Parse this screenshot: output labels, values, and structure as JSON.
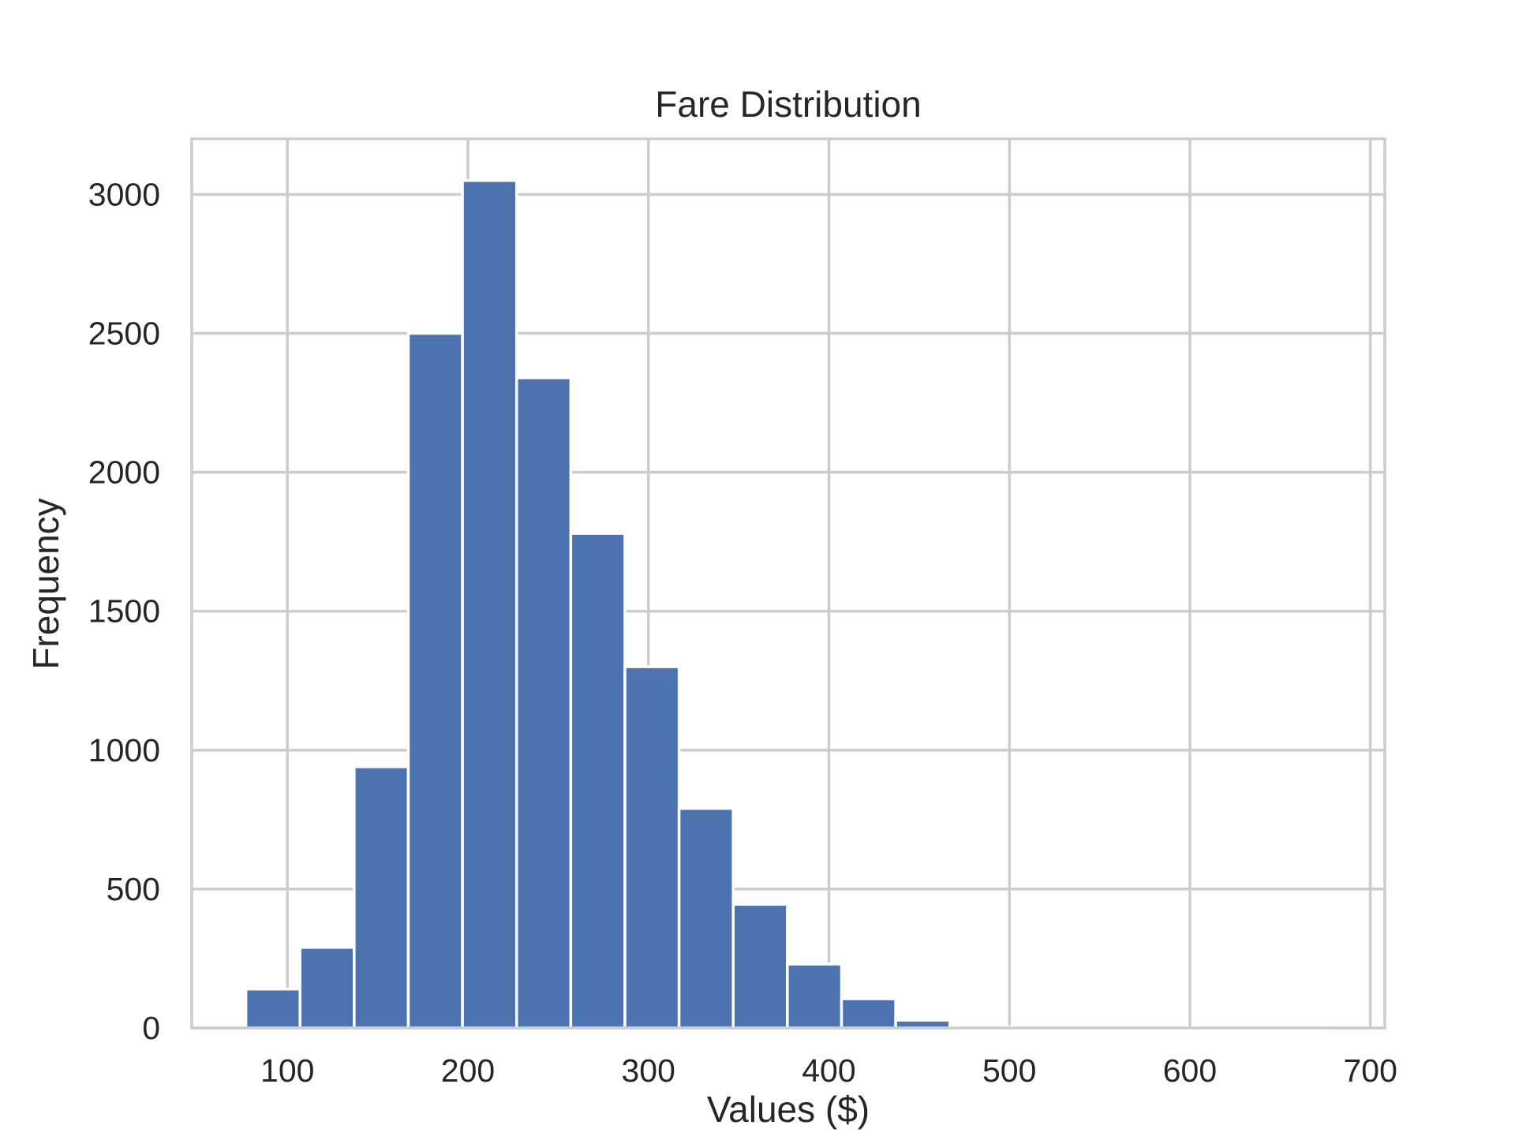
{
  "chart_data": {
    "type": "bar",
    "title": "Fare Distribution",
    "xlabel": "Values ($)",
    "ylabel": "Frequency",
    "xlim": [
      47,
      708
    ],
    "ylim": [
      0,
      3200
    ],
    "xticks": [
      100,
      200,
      300,
      400,
      500,
      600,
      700
    ],
    "yticks": [
      0,
      500,
      1000,
      1500,
      2000,
      2500,
      3000
    ],
    "grid": true,
    "bar_color": "#4c72b0",
    "bins": [
      {
        "start": 77,
        "end": 107,
        "count": 140
      },
      {
        "start": 107,
        "end": 137,
        "count": 290
      },
      {
        "start": 137,
        "end": 167,
        "count": 940
      },
      {
        "start": 167,
        "end": 197,
        "count": 2500
      },
      {
        "start": 197,
        "end": 227,
        "count": 3050
      },
      {
        "start": 227,
        "end": 257,
        "count": 2340
      },
      {
        "start": 257,
        "end": 287,
        "count": 1780
      },
      {
        "start": 287,
        "end": 317,
        "count": 1300
      },
      {
        "start": 317,
        "end": 347,
        "count": 790
      },
      {
        "start": 347,
        "end": 377,
        "count": 445
      },
      {
        "start": 377,
        "end": 407,
        "count": 230
      },
      {
        "start": 407,
        "end": 437,
        "count": 105
      },
      {
        "start": 437,
        "end": 467,
        "count": 28
      },
      {
        "start": 467,
        "end": 497,
        "count": 6
      },
      {
        "start": 497,
        "end": 527,
        "count": 3
      },
      {
        "start": 527,
        "end": 557,
        "count": 2
      },
      {
        "start": 557,
        "end": 587,
        "count": 1
      },
      {
        "start": 587,
        "end": 617,
        "count": 1
      },
      {
        "start": 617,
        "end": 647,
        "count": 1
      },
      {
        "start": 647,
        "end": 677,
        "count": 1
      }
    ]
  }
}
